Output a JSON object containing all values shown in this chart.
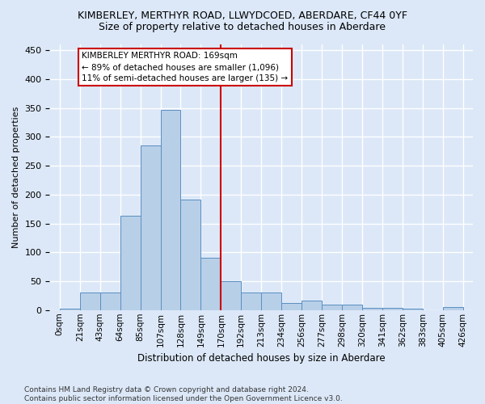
{
  "title": "KIMBERLEY, MERTHYR ROAD, LLWYDCOED, ABERDARE, CF44 0YF",
  "subtitle": "Size of property relative to detached houses in Aberdare",
  "xlabel": "Distribution of detached houses by size in Aberdare",
  "ylabel": "Number of detached properties",
  "footnote": "Contains HM Land Registry data © Crown copyright and database right 2024.\nContains public sector information licensed under the Open Government Licence v3.0.",
  "bin_labels": [
    "0sqm",
    "21sqm",
    "43sqm",
    "64sqm",
    "85sqm",
    "107sqm",
    "128sqm",
    "149sqm",
    "170sqm",
    "192sqm",
    "213sqm",
    "234sqm",
    "256sqm",
    "277sqm",
    "298sqm",
    "320sqm",
    "341sqm",
    "362sqm",
    "383sqm",
    "405sqm",
    "426sqm"
  ],
  "bar_heights": [
    3,
    30,
    30,
    163,
    285,
    347,
    192,
    90,
    50,
    30,
    30,
    12,
    17,
    9,
    9,
    4,
    4,
    2,
    0,
    5
  ],
  "bar_color": "#b8cfe8",
  "bar_edge_color": "#5a8fc0",
  "vline_index": 8,
  "marker_label_line1": "KIMBERLEY MERTHYR ROAD: 169sqm",
  "marker_label_line2": "← 89% of detached houses are smaller (1,096)",
  "marker_label_line3": "11% of semi-detached houses are larger (135) →",
  "annotation_box_color": "#cc0000",
  "vline_color": "#cc0000",
  "ylim": [
    0,
    460
  ],
  "background_color": "#dce8f8",
  "grid_color": "#ffffff",
  "title_fontsize": 9,
  "subtitle_fontsize": 9,
  "footnote_fontsize": 6.5
}
